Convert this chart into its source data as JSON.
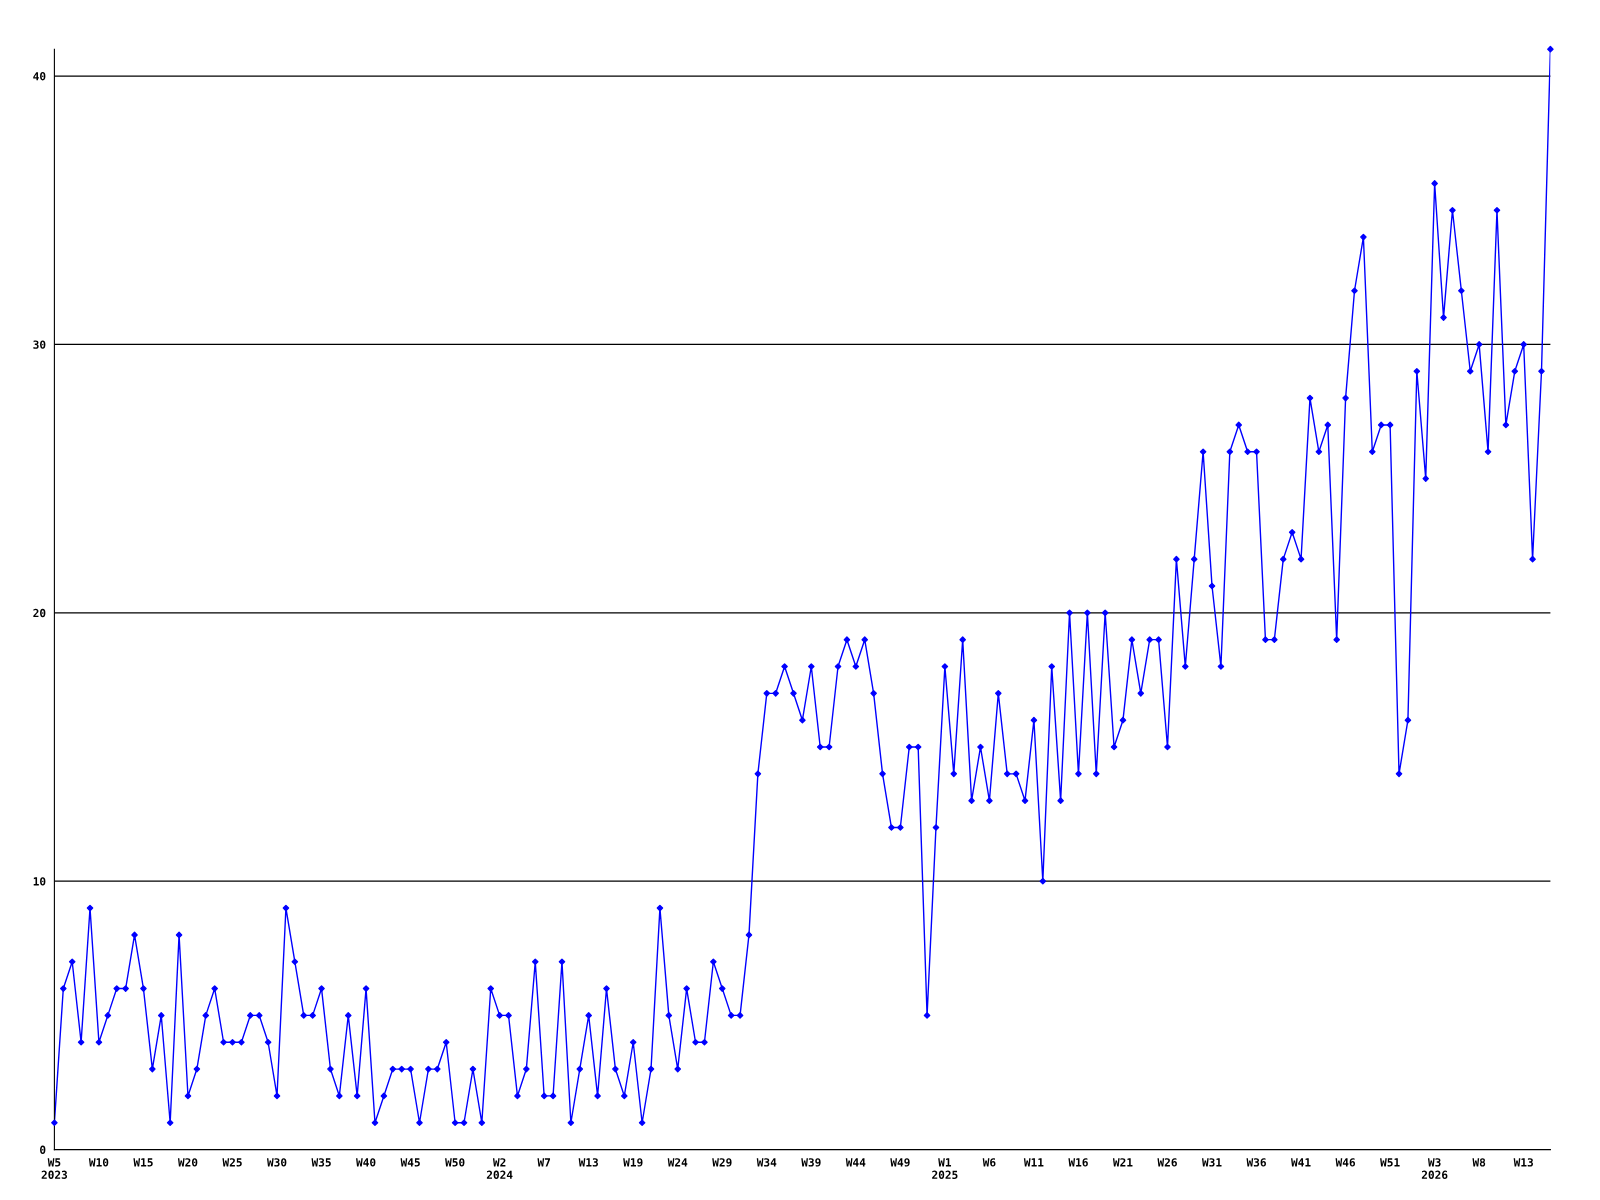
{
  "chart_data": {
    "type": "line",
    "categories": [
      "W5\n2023",
      null,
      null,
      null,
      null,
      "W10",
      null,
      null,
      null,
      null,
      "W15",
      null,
      null,
      null,
      null,
      "W20",
      null,
      null,
      null,
      null,
      "W25",
      null,
      null,
      null,
      null,
      "W30",
      null,
      null,
      null,
      null,
      "W35",
      null,
      null,
      null,
      null,
      "W40",
      null,
      null,
      null,
      null,
      "W45",
      null,
      null,
      null,
      null,
      "W50",
      null,
      null,
      null,
      null,
      "W2\n2024",
      null,
      null,
      null,
      null,
      "W7",
      null,
      null,
      null,
      null,
      "W13",
      null,
      null,
      null,
      null,
      "W19",
      null,
      null,
      null,
      null,
      "W24",
      null,
      null,
      null,
      null,
      "W29",
      null,
      null,
      null,
      null,
      "W34",
      null,
      null,
      null,
      null,
      "W39",
      null,
      null,
      null,
      null,
      "W44",
      null,
      null,
      null,
      null,
      "W49",
      null,
      null,
      null,
      null,
      "W1\n2025",
      null,
      null,
      null,
      null,
      "W6",
      null,
      null,
      null,
      null,
      "W11",
      null,
      null,
      null,
      null,
      "W16",
      null,
      null,
      null,
      null,
      "W21",
      null,
      null,
      null,
      null,
      "W26",
      null,
      null,
      null,
      null,
      "W31",
      null,
      null,
      null,
      null,
      "W36",
      null,
      null,
      null,
      null,
      "W41",
      null,
      null,
      null,
      null,
      "W46",
      null,
      null,
      null,
      null,
      "W51",
      null,
      null,
      null,
      null,
      "W3\n2026",
      null,
      null,
      null,
      null,
      "W8",
      null,
      null,
      null,
      null,
      "W13",
      null,
      null,
      null
    ],
    "series": [
      {
        "color": "#0000ff",
        "values": [
          1,
          6,
          7,
          4,
          9,
          4,
          5,
          6,
          6,
          8,
          6,
          3,
          5,
          1,
          8,
          2,
          3,
          5,
          6,
          4,
          4,
          4,
          5,
          5,
          4,
          2,
          9,
          7,
          5,
          5,
          6,
          3,
          2,
          5,
          2,
          6,
          1,
          2,
          3,
          3,
          3,
          1,
          3,
          3,
          4,
          1,
          1,
          3,
          1,
          6,
          5,
          5,
          2,
          3,
          7,
          2,
          2,
          7,
          1,
          3,
          5,
          2,
          6,
          3,
          2,
          4,
          1,
          3,
          9,
          5,
          3,
          6,
          4,
          4,
          7,
          6,
          5,
          5,
          8,
          14,
          17,
          17,
          18,
          17,
          16,
          18,
          15,
          15,
          18,
          19,
          18,
          19,
          17,
          14,
          12,
          12,
          15,
          15,
          5,
          12,
          18,
          14,
          19,
          13,
          15,
          13,
          17,
          14,
          14,
          13,
          16,
          10,
          18,
          13,
          20,
          14,
          20,
          14,
          20,
          15,
          16,
          19,
          17,
          19,
          19,
          15,
          22,
          18,
          22,
          26,
          21,
          18,
          26,
          27,
          26,
          26,
          19,
          19,
          22,
          23,
          22,
          28,
          26,
          27,
          19,
          28,
          32,
          34,
          26,
          27,
          27,
          14,
          16,
          29,
          25,
          36,
          31,
          35,
          32,
          29,
          30,
          26,
          35,
          27,
          29,
          30,
          22,
          29,
          41
        ]
      }
    ],
    "ylim": [
      0,
      41
    ],
    "yticks": [
      0,
      10,
      20,
      30,
      40
    ],
    "grid": "y",
    "marker": "diamond",
    "line_style": "solid"
  }
}
